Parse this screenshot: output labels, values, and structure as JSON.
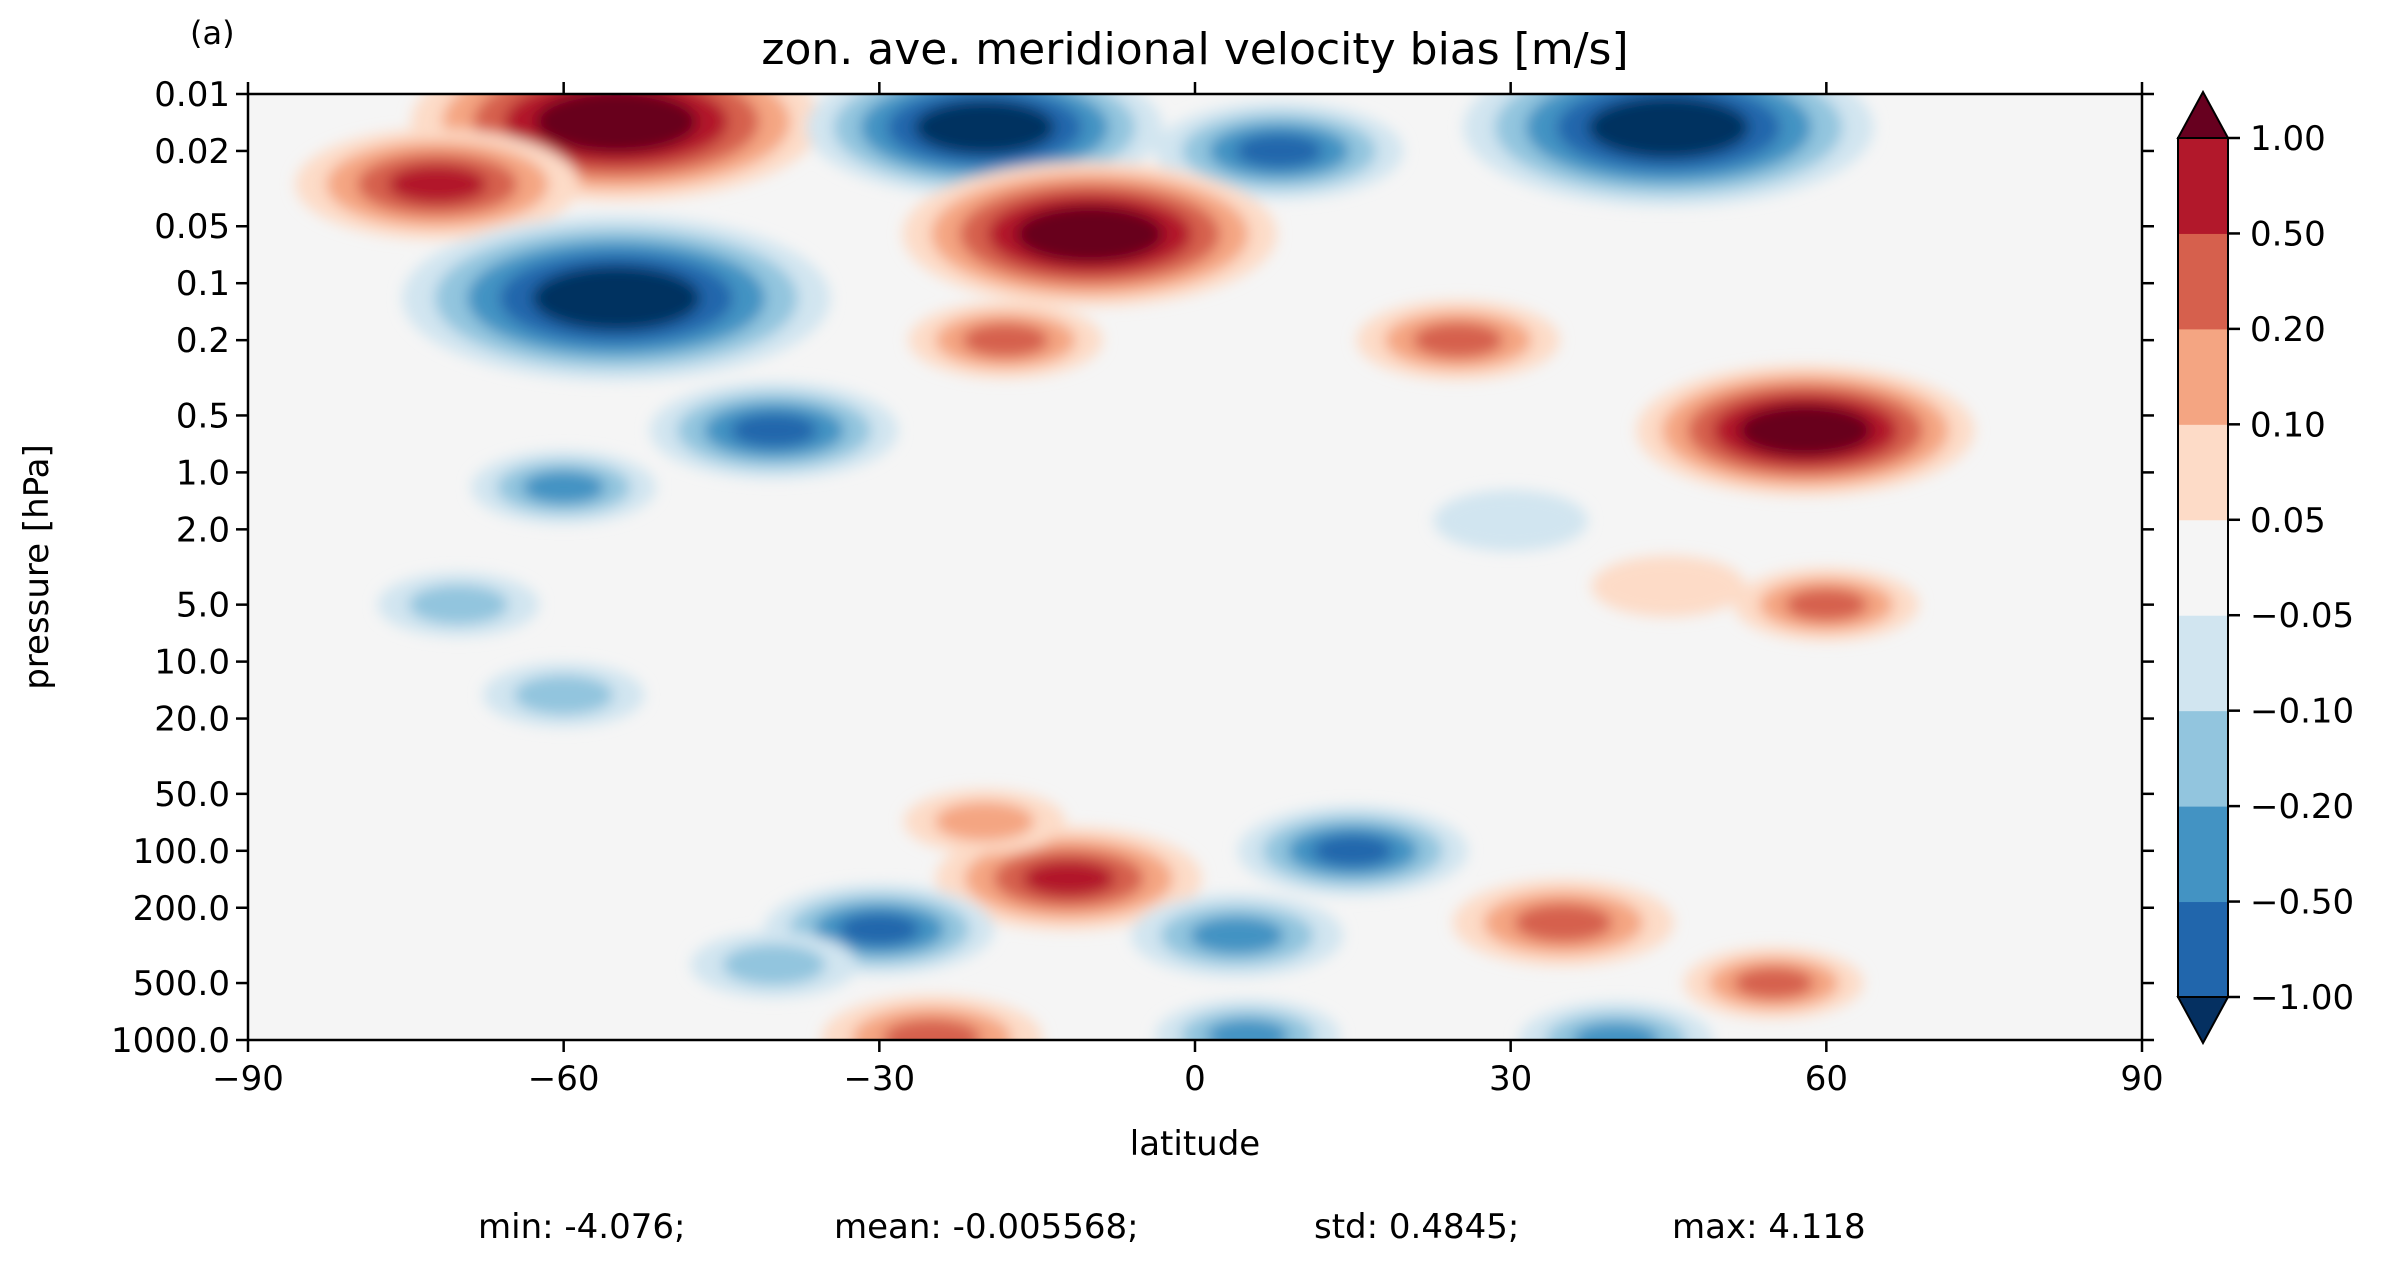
{
  "panel_label": "(a)",
  "chart_data": {
    "type": "heatmap",
    "title": "zon. ave. meridional velocity bias [m/s]",
    "xlabel": "latitude",
    "ylabel": "pressure [hPa]",
    "xlim": [
      -90,
      90
    ],
    "ylim": [
      1000.0,
      0.01
    ],
    "y_scale": "log",
    "x_ticks": [
      -90,
      -60,
      -30,
      0,
      30,
      60,
      90
    ],
    "x_tick_labels": [
      "−90",
      "−60",
      "−30",
      "0",
      "30",
      "60",
      "90"
    ],
    "y_ticks": [
      0.01,
      0.02,
      0.05,
      0.1,
      0.2,
      0.5,
      1.0,
      2.0,
      5.0,
      10.0,
      20.0,
      50.0,
      100.0,
      200.0,
      500.0,
      1000.0
    ],
    "y_tick_labels": [
      "0.01",
      "0.02",
      "0.05",
      "0.1",
      "0.2",
      "0.5",
      "1.0",
      "2.0",
      "5.0",
      "10.0",
      "20.0",
      "50.0",
      "100.0",
      "200.0",
      "500.0",
      "1000.0"
    ],
    "colorbar": {
      "levels": [
        -1.0,
        -0.5,
        -0.2,
        -0.1,
        -0.05,
        0.05,
        0.1,
        0.2,
        0.5,
        1.0
      ],
      "tick_labels": [
        "−1.00",
        "−0.50",
        "−0.20",
        "−0.10",
        "−0.05",
        "0.05",
        "0.10",
        "0.20",
        "0.50",
        "1.00"
      ],
      "colors": [
        "#053061",
        "#2166ac",
        "#4393c3",
        "#92c5de",
        "#d1e5f0",
        "#f5f5f5",
        "#fddbc7",
        "#f4a582",
        "#d6604d",
        "#b2182b",
        "#67001f"
      ],
      "extend": "both"
    },
    "features": [
      {
        "lat": -55,
        "p": 0.014,
        "value": 1.5
      },
      {
        "lat": -72,
        "p": 0.03,
        "value": 0.8
      },
      {
        "lat": 45,
        "p": 0.015,
        "value": -1.5
      },
      {
        "lat": 8,
        "p": 0.02,
        "value": -0.6
      },
      {
        "lat": -20,
        "p": 0.015,
        "value": -1.2
      },
      {
        "lat": -55,
        "p": 0.12,
        "value": -1.6
      },
      {
        "lat": -40,
        "p": 0.6,
        "value": -0.6
      },
      {
        "lat": -60,
        "p": 1.2,
        "value": -0.25
      },
      {
        "lat": -70,
        "p": 5.0,
        "value": -0.12
      },
      {
        "lat": -60,
        "p": 15.0,
        "value": -0.12
      },
      {
        "lat": -10,
        "p": 0.055,
        "value": 1.3
      },
      {
        "lat": -18,
        "p": 0.2,
        "value": 0.3
      },
      {
        "lat": 58,
        "p": 0.6,
        "value": 1.1
      },
      {
        "lat": 25,
        "p": 0.2,
        "value": 0.35
      },
      {
        "lat": 60,
        "p": 5.0,
        "value": 0.25
      },
      {
        "lat": 45,
        "p": 4.0,
        "value": 0.08
      },
      {
        "lat": 30,
        "p": 1.8,
        "value": -0.08
      },
      {
        "lat": -12,
        "p": 140.0,
        "value": 0.7
      },
      {
        "lat": -20,
        "p": 70.0,
        "value": 0.12
      },
      {
        "lat": 15,
        "p": 100.0,
        "value": -0.5
      },
      {
        "lat": -30,
        "p": 260.0,
        "value": -0.5
      },
      {
        "lat": -40,
        "p": 400.0,
        "value": -0.15
      },
      {
        "lat": 4,
        "p": 280.0,
        "value": -0.4
      },
      {
        "lat": 35,
        "p": 240.0,
        "value": 0.45
      },
      {
        "lat": 55,
        "p": 500.0,
        "value": 0.22
      },
      {
        "lat": -25,
        "p": 980.0,
        "value": 0.45
      },
      {
        "lat": 5,
        "p": 950.0,
        "value": -0.25
      },
      {
        "lat": 40,
        "p": 1000.0,
        "value": -0.3
      }
    ]
  },
  "stats": {
    "min": "min: -4.076;",
    "mean": "mean: -0.005568;",
    "std": "std: 0.4845;",
    "max": "max: 4.118"
  }
}
